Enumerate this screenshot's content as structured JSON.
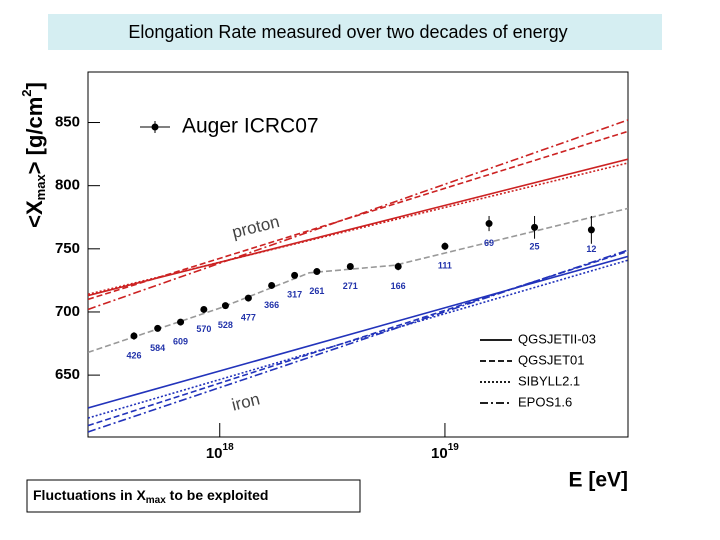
{
  "title": "Elongation Rate measured over two decades of energy",
  "footnote": [
    "Fluctuations in X",
    "max",
    " to be exploited"
  ],
  "chart_data": {
    "type": "scatter",
    "x_label": "E [eV]",
    "y_label": [
      "<X",
      "max",
      "> [g/cm",
      "2",
      "]"
    ],
    "xlim": [
      2.6e+17,
      6.5e+19
    ],
    "log_x": true,
    "xticks": [
      {
        "value": 1e+18,
        "label": "1018"
      },
      {
        "value": 1e+19,
        "label": "1019"
      }
    ],
    "ylim": [
      601,
      890
    ],
    "yticks": [
      650,
      700,
      750,
      800,
      850
    ],
    "series": [
      {
        "name": "Auger ICRC07",
        "color": "#000000",
        "x": [
          4.16e+17,
          5.3e+17,
          6.7e+17,
          8.5e+17,
          1.06e+18,
          1.34e+18,
          1.7e+18,
          2.15e+18,
          2.7e+18,
          3.8e+18,
          6.2e+18,
          1e+19,
          1.57e+19,
          2.5e+19,
          4.47e+19
        ],
        "values": [
          681,
          687,
          692,
          702,
          705,
          711,
          721,
          729,
          732,
          736,
          736,
          752,
          770,
          767,
          765
        ],
        "errors": [
          3,
          2,
          2,
          2,
          2,
          2,
          2,
          2,
          2,
          2,
          3,
          3,
          6,
          9,
          11
        ],
        "event_counts": [
          426,
          584,
          609,
          570,
          528,
          477,
          366,
          317,
          261,
          271,
          166,
          111,
          69,
          25,
          12
        ],
        "counts_color": "#2233aa"
      }
    ],
    "fit": {
      "color": "#999999",
      "x": [
        2.6e+17,
        1e+18,
        2.5e+18,
        6e+18,
        6.5e+19
      ],
      "values": [
        668,
        703,
        731,
        737,
        782
      ]
    },
    "proton_label": "proton",
    "iron_label": "iron",
    "proton_color": "#cc2222",
    "iron_color": "#2233bb",
    "models": [
      {
        "name": "QGSJETII-03",
        "linestyle": "solid",
        "proton": {
          "x": [
            2.6e+17,
            6.5e+19
          ],
          "values": [
            713,
            821
          ]
        },
        "iron": {
          "x": [
            2.6e+17,
            6.5e+19
          ],
          "values": [
            624,
            744
          ]
        }
      },
      {
        "name": "QGSJET01",
        "linestyle": "dashed",
        "proton": {
          "x": [
            2.6e+17,
            6.5e+19
          ],
          "values": [
            710,
            843
          ]
        },
        "iron": {
          "x": [
            2.6e+17,
            6.5e+19
          ],
          "values": [
            610,
            748
          ]
        }
      },
      {
        "name": "SIBYLL2.1",
        "linestyle": "dotted",
        "proton": {
          "x": [
            2.6e+17,
            6.5e+19
          ],
          "values": [
            714,
            818
          ]
        },
        "iron": {
          "x": [
            2.6e+17,
            6.5e+19
          ],
          "values": [
            616,
            741
          ]
        }
      },
      {
        "name": "EPOS1.6",
        "linestyle": "dashdot",
        "proton": {
          "x": [
            2.6e+17,
            6.5e+19
          ],
          "values": [
            702,
            852
          ]
        },
        "iron": {
          "x": [
            2.6e+17,
            6.5e+19
          ],
          "values": [
            605,
            749
          ]
        }
      }
    ]
  }
}
